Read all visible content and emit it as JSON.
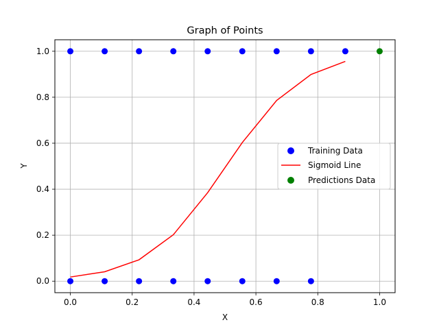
{
  "chart_data": {
    "type": "scatter",
    "title": "Graph of Points",
    "xlabel": "X",
    "ylabel": "Y",
    "xlim": [
      -0.05,
      1.05
    ],
    "ylim": [
      -0.05,
      1.05
    ],
    "x_ticks": [
      0.0,
      0.2,
      0.4,
      0.6,
      0.8,
      1.0
    ],
    "x_tick_labels": [
      "0.0",
      "0.2",
      "0.4",
      "0.6",
      "0.8",
      "1.0"
    ],
    "y_ticks": [
      0.0,
      0.2,
      0.4,
      0.6,
      0.8,
      1.0
    ],
    "y_tick_labels": [
      "0.0",
      "0.2",
      "0.4",
      "0.6",
      "0.8",
      "1.0"
    ],
    "grid": true,
    "legend_position": "center-right",
    "series": [
      {
        "name": "Training Data",
        "kind": "scatter",
        "color": "#0000ff",
        "x": [
          0.0,
          0.111,
          0.222,
          0.333,
          0.444,
          0.556,
          0.667,
          0.778,
          0.889,
          0.0,
          0.111,
          0.222,
          0.333,
          0.444,
          0.556,
          0.667,
          0.778
        ],
        "y": [
          1,
          1,
          1,
          1,
          1,
          1,
          1,
          1,
          1,
          0,
          0,
          0,
          0,
          0,
          0,
          0,
          0
        ]
      },
      {
        "name": "Sigmoid Line",
        "kind": "line",
        "color": "#ff0000",
        "x": [
          0.0,
          0.111,
          0.222,
          0.333,
          0.444,
          0.556,
          0.667,
          0.778,
          0.889
        ],
        "y": [
          0.018,
          0.041,
          0.093,
          0.202,
          0.385,
          0.603,
          0.786,
          0.899,
          0.956
        ]
      },
      {
        "name": "Predictions Data",
        "kind": "scatter",
        "color": "#008000",
        "x": [
          1.0
        ],
        "y": [
          1
        ]
      }
    ]
  }
}
